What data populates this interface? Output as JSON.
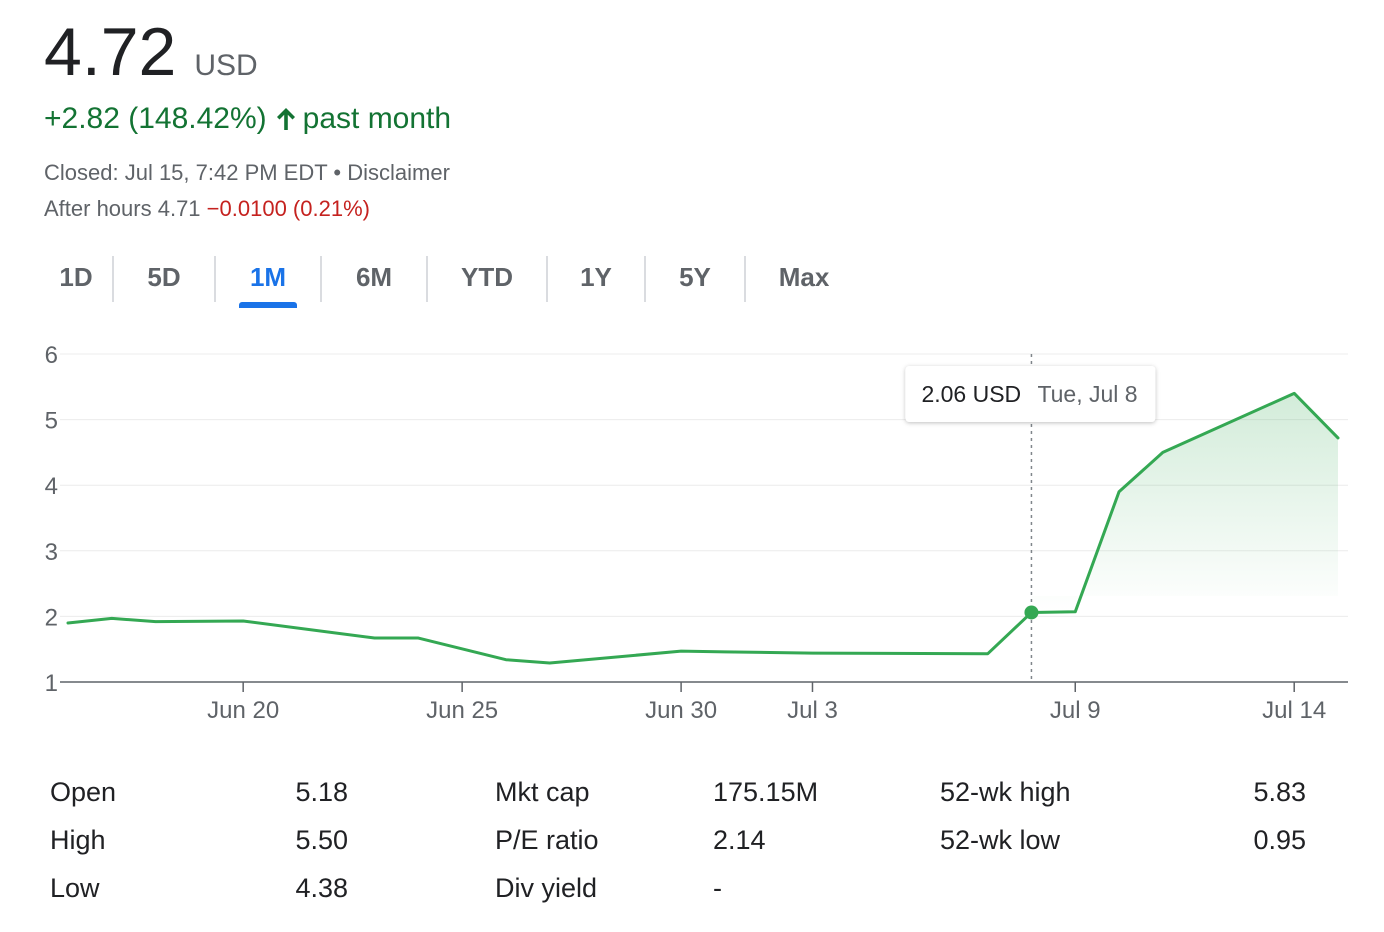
{
  "header": {
    "price": "4.72",
    "currency": "USD",
    "change_text": "+2.82 (148.42%)",
    "change_period": "past month",
    "closed_text": "Closed: Jul 15, 7:42 PM EDT",
    "separator": "•",
    "disclaimer": "Disclaimer",
    "after_hours_label": "After hours 4.71",
    "after_hours_change": "−0.0100 (0.21%)"
  },
  "colors": {
    "positive": "#137333",
    "negative": "#c5221f",
    "line": "#34a853",
    "accent": "#1a73e8"
  },
  "tabs": [
    {
      "label": "1D",
      "active": false
    },
    {
      "label": "5D",
      "active": false
    },
    {
      "label": "1M",
      "active": true
    },
    {
      "label": "6M",
      "active": false
    },
    {
      "label": "YTD",
      "active": false
    },
    {
      "label": "1Y",
      "active": false
    },
    {
      "label": "5Y",
      "active": false
    },
    {
      "label": "Max",
      "active": false
    }
  ],
  "chart_data": {
    "type": "line",
    "ylim": [
      1,
      6
    ],
    "yticks": [
      1,
      2,
      3,
      4,
      5,
      6
    ],
    "xlim": [
      "2025-06-16",
      "2025-07-15"
    ],
    "xticks": [
      {
        "date": "2025-06-20",
        "label": "Jun 20"
      },
      {
        "date": "2025-06-25",
        "label": "Jun 25"
      },
      {
        "date": "2025-06-30",
        "label": "Jun 30"
      },
      {
        "date": "2025-07-03",
        "label": "Jul 3"
      },
      {
        "date": "2025-07-09",
        "label": "Jul 9"
      },
      {
        "date": "2025-07-14",
        "label": "Jul 14"
      }
    ],
    "grid": true,
    "series": [
      {
        "points": [
          {
            "x": "2025-06-16",
            "y": 1.9
          },
          {
            "x": "2025-06-17",
            "y": 1.97
          },
          {
            "x": "2025-06-18",
            "y": 1.92
          },
          {
            "x": "2025-06-20",
            "y": 1.93
          },
          {
            "x": "2025-06-23",
            "y": 1.67
          },
          {
            "x": "2025-06-24",
            "y": 1.67
          },
          {
            "x": "2025-06-26",
            "y": 1.34
          },
          {
            "x": "2025-06-27",
            "y": 1.29
          },
          {
            "x": "2025-06-30",
            "y": 1.47
          },
          {
            "x": "2025-07-01",
            "y": 1.46
          },
          {
            "x": "2025-07-03",
            "y": 1.44
          },
          {
            "x": "2025-07-07",
            "y": 1.43
          },
          {
            "x": "2025-07-08",
            "y": 2.06
          },
          {
            "x": "2025-07-09",
            "y": 2.07
          },
          {
            "x": "2025-07-10",
            "y": 3.9
          },
          {
            "x": "2025-07-11",
            "y": 4.5
          },
          {
            "x": "2025-07-14",
            "y": 5.4
          },
          {
            "x": "2025-07-15",
            "y": 4.72
          }
        ]
      }
    ],
    "highlight": {
      "x": "2025-07-08",
      "y": 2.06,
      "value_label": "2.06 USD",
      "date_label": "Tue, Jul 8"
    }
  },
  "stats": {
    "col1": [
      {
        "label": "Open",
        "value": "5.18"
      },
      {
        "label": "High",
        "value": "5.50"
      },
      {
        "label": "Low",
        "value": "4.38"
      }
    ],
    "col2": [
      {
        "label": "Mkt cap",
        "value": "175.15M"
      },
      {
        "label": "P/E ratio",
        "value": "2.14"
      },
      {
        "label": "Div yield",
        "value": "-"
      }
    ],
    "col3": [
      {
        "label": "52-wk high",
        "value": "5.83"
      },
      {
        "label": "52-wk low",
        "value": "0.95"
      }
    ]
  }
}
